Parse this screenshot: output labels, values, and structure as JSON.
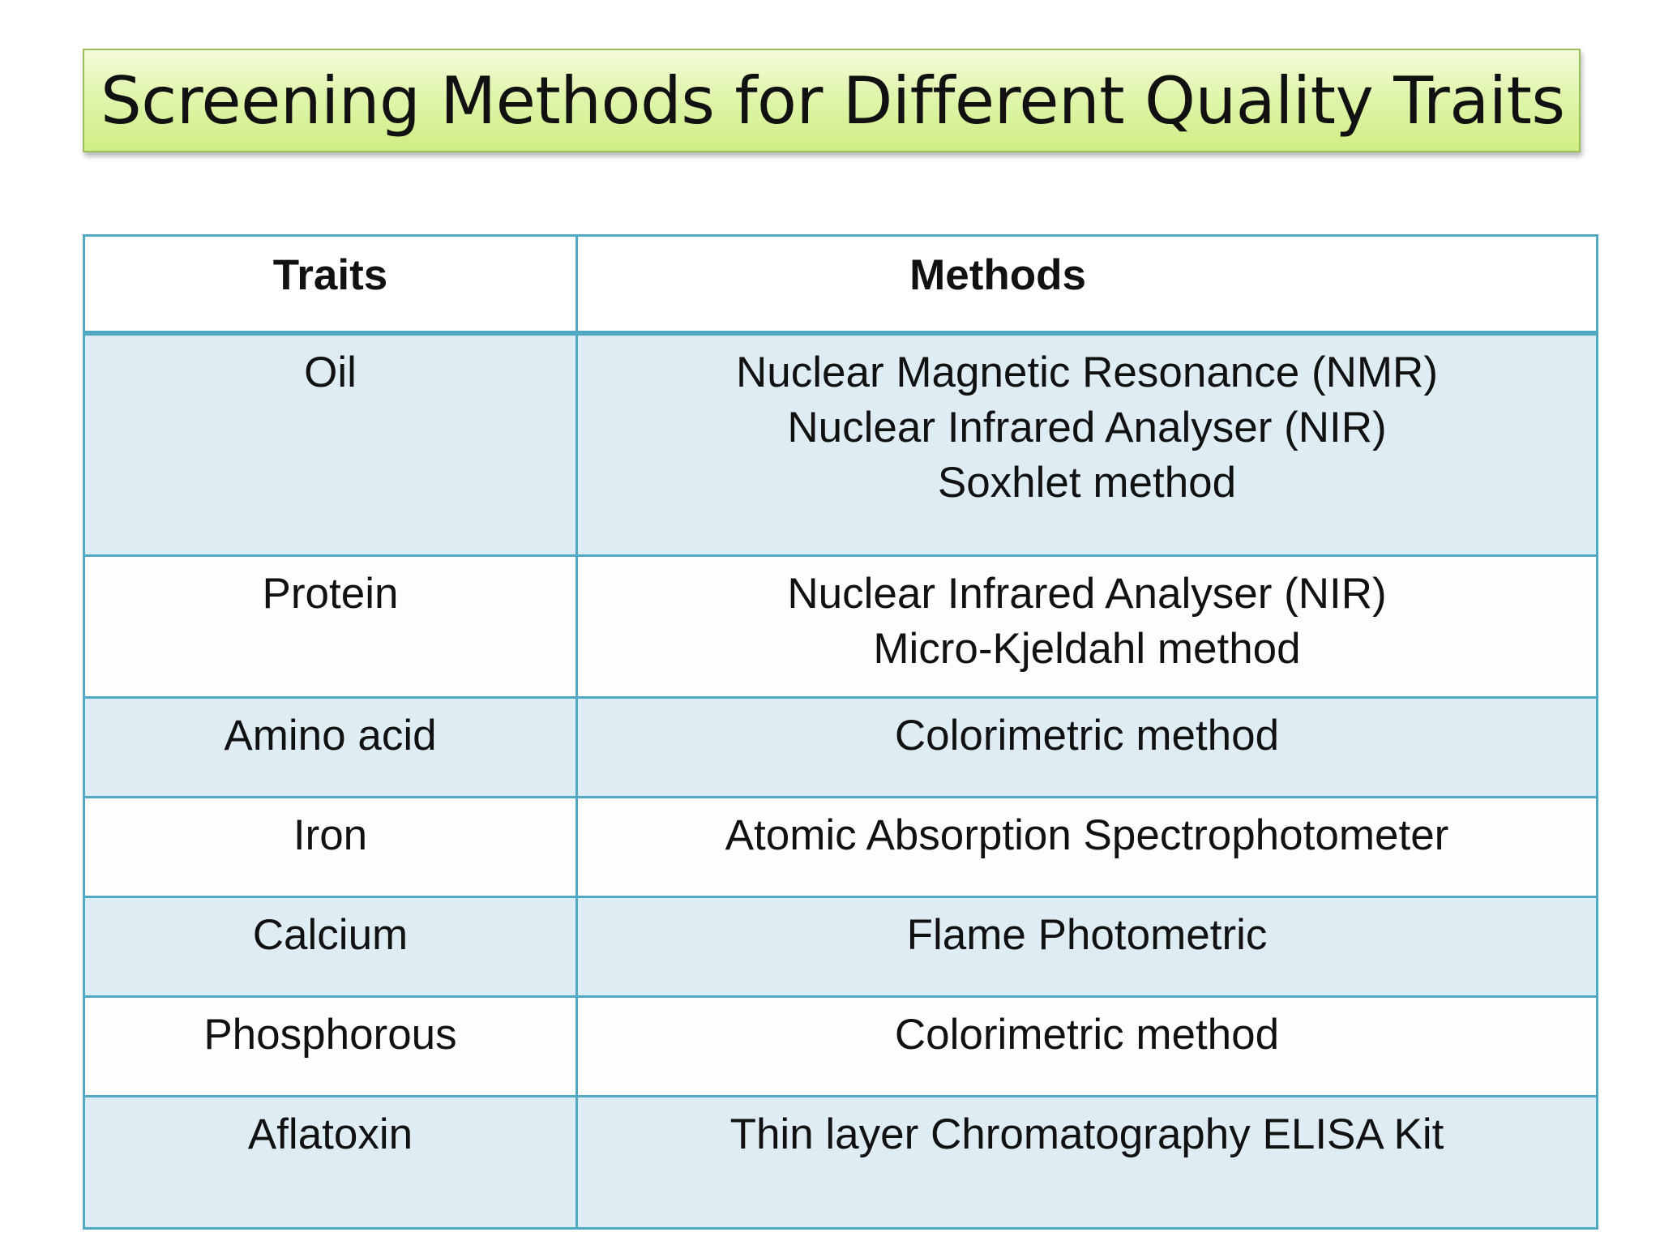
{
  "title": "Screening Methods for Different Quality Traits",
  "table": {
    "headers": {
      "trait": "Traits",
      "method": "Methods"
    },
    "rows": [
      {
        "trait": "Oil",
        "methods": [
          "Nuclear Magnetic Resonance (NMR)",
          "Nuclear Infrared Analyser (NIR)",
          "Soxhlet method"
        ]
      },
      {
        "trait": "Protein",
        "methods": [
          "Nuclear Infrared Analyser (NIR)",
          "Micro-Kjeldahl method"
        ]
      },
      {
        "trait": "Amino acid",
        "methods": [
          "Colorimetric method"
        ]
      },
      {
        "trait": "Iron",
        "methods": [
          "Atomic Absorption Spectrophotometer"
        ]
      },
      {
        "trait": "Calcium",
        "methods": [
          "Flame Photometric"
        ]
      },
      {
        "trait": "Phosphorous",
        "methods": [
          "Colorimetric method"
        ]
      },
      {
        "trait": "Aflatoxin",
        "methods": [
          "Thin layer Chromatography ELISA Kit"
        ]
      }
    ]
  },
  "colors": {
    "title_gradient_top": "#f3fbd9",
    "title_gradient_bottom": "#cfee83",
    "table_border": "#4fa9c3",
    "row_band": "#deecf3",
    "row_plain": "#fdfdfd"
  }
}
